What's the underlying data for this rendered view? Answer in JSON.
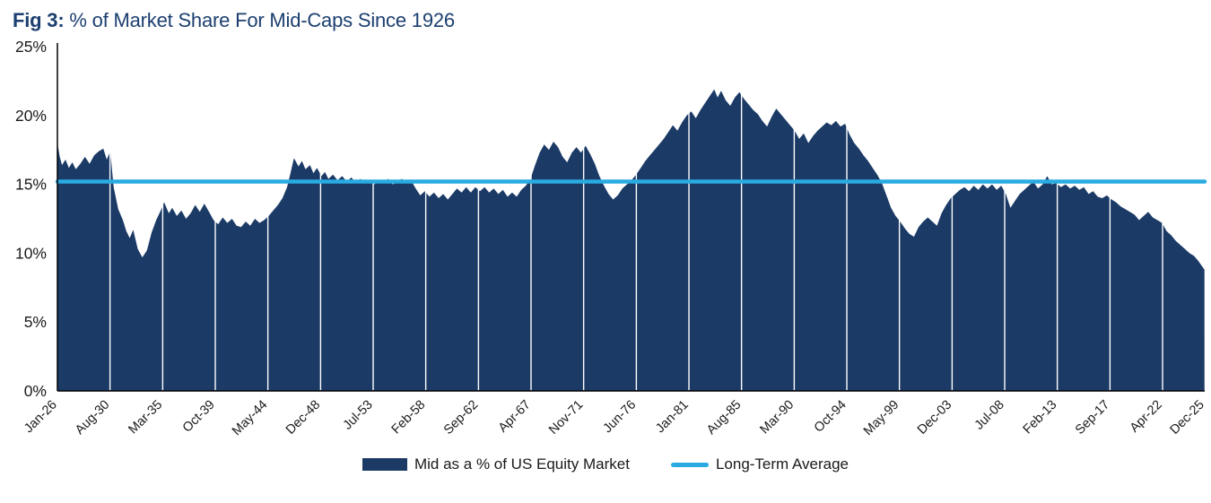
{
  "title": {
    "prefix": "Fig 3:",
    "text": " % of Market Share For Mid-Caps Since 1926"
  },
  "colors": {
    "navy": "#1b3a66",
    "light_blue": "#29abe2",
    "axis": "#000000",
    "tick_text": "#1a1a1a",
    "title": "#1c3f70",
    "gridline": "#ffffff"
  },
  "legend": [
    {
      "swatch": "area",
      "label": "Mid as a % of US Equity Market"
    },
    {
      "swatch": "line",
      "label": "Long-Term Average"
    }
  ],
  "chart_data": {
    "type": "area",
    "title": "Fig 3: % of Market Share For Mid-Caps Since 1926",
    "series_name": "Mid as a % of US Equity Market",
    "average_line": {
      "name": "Long-Term Average",
      "value": 15.2
    },
    "ylim": [
      0,
      25
    ],
    "yticks": [
      "0%",
      "5%",
      "10%",
      "15%",
      "20%",
      "25%"
    ],
    "ytick_values": [
      0,
      5,
      10,
      15,
      20,
      25
    ],
    "xlim": [
      1926.0,
      2025.92
    ],
    "xticks": [
      {
        "label": "Jan-26",
        "x": 1926.0
      },
      {
        "label": "Aug-30",
        "x": 1930.58
      },
      {
        "label": "Mar-35",
        "x": 1935.17
      },
      {
        "label": "Oct-39",
        "x": 1939.75
      },
      {
        "label": "May-44",
        "x": 1944.33
      },
      {
        "label": "Dec-48",
        "x": 1948.92
      },
      {
        "label": "Jul-53",
        "x": 1953.5
      },
      {
        "label": "Feb-58",
        "x": 1958.08
      },
      {
        "label": "Sep-62",
        "x": 1962.67
      },
      {
        "label": "Apr-67",
        "x": 1967.25
      },
      {
        "label": "Nov-71",
        "x": 1971.83
      },
      {
        "label": "Jun-76",
        "x": 1976.42
      },
      {
        "label": "Jan-81",
        "x": 1981.0
      },
      {
        "label": "Aug-85",
        "x": 1985.58
      },
      {
        "label": "Mar-90",
        "x": 1990.17
      },
      {
        "label": "Oct-94",
        "x": 1994.75
      },
      {
        "label": "May-99",
        "x": 1999.33
      },
      {
        "label": "Dec-03",
        "x": 2003.92
      },
      {
        "label": "Jul-08",
        "x": 2008.5
      },
      {
        "label": "Feb-13",
        "x": 2013.08
      },
      {
        "label": "Sep-17",
        "x": 2017.67
      },
      {
        "label": "Apr-22",
        "x": 2022.25
      },
      {
        "label": "Dec-25",
        "x": 2025.92
      }
    ],
    "points": [
      [
        1926,
        18
      ],
      [
        1926.2,
        17
      ],
      [
        1926.4,
        16.4
      ],
      [
        1926.7,
        16.8
      ],
      [
        1927,
        16.2
      ],
      [
        1927.3,
        16.6
      ],
      [
        1927.6,
        16.1
      ],
      [
        1928,
        16.5
      ],
      [
        1928.4,
        17
      ],
      [
        1928.8,
        16.5
      ],
      [
        1929.2,
        17.1
      ],
      [
        1929.6,
        17.4
      ],
      [
        1930,
        17.6
      ],
      [
        1930.3,
        16.8
      ],
      [
        1930.6,
        17.4
      ],
      [
        1930.9,
        14.8
      ],
      [
        1931.3,
        13.2
      ],
      [
        1931.7,
        12.4
      ],
      [
        1932,
        11.6
      ],
      [
        1932.3,
        11.1
      ],
      [
        1932.6,
        11.7
      ],
      [
        1933,
        10.3
      ],
      [
        1933.4,
        9.7
      ],
      [
        1933.8,
        10.2
      ],
      [
        1934.2,
        11.5
      ],
      [
        1934.6,
        12.4
      ],
      [
        1935,
        13.1
      ],
      [
        1935.3,
        13.7
      ],
      [
        1935.7,
        12.9
      ],
      [
        1936,
        13.3
      ],
      [
        1936.4,
        12.7
      ],
      [
        1936.8,
        13.1
      ],
      [
        1937.2,
        12.5
      ],
      [
        1937.6,
        12.9
      ],
      [
        1938,
        13.5
      ],
      [
        1938.4,
        13
      ],
      [
        1938.8,
        13.6
      ],
      [
        1939.2,
        13
      ],
      [
        1939.6,
        12.4
      ],
      [
        1940,
        12.1
      ],
      [
        1940.4,
        12.6
      ],
      [
        1940.8,
        12.2
      ],
      [
        1941.2,
        12.5
      ],
      [
        1941.6,
        12
      ],
      [
        1942,
        11.9
      ],
      [
        1942.4,
        12.3
      ],
      [
        1942.8,
        12
      ],
      [
        1943.2,
        12.5
      ],
      [
        1943.6,
        12.2
      ],
      [
        1944,
        12.4
      ],
      [
        1944.4,
        12.7
      ],
      [
        1944.8,
        13.1
      ],
      [
        1945.2,
        13.5
      ],
      [
        1945.6,
        14
      ],
      [
        1946,
        14.8
      ],
      [
        1946.3,
        15.8
      ],
      [
        1946.6,
        16.9
      ],
      [
        1947,
        16.3
      ],
      [
        1947.3,
        16.7
      ],
      [
        1947.6,
        16.1
      ],
      [
        1948,
        16.4
      ],
      [
        1948.3,
        15.8
      ],
      [
        1948.6,
        16.2
      ],
      [
        1949,
        15.6
      ],
      [
        1949.3,
        15.9
      ],
      [
        1949.6,
        15.4
      ],
      [
        1950,
        15.7
      ],
      [
        1950.4,
        15.3
      ],
      [
        1950.8,
        15.6
      ],
      [
        1951.2,
        15.2
      ],
      [
        1951.6,
        15.5
      ],
      [
        1952,
        15.1
      ],
      [
        1952.4,
        15.4
      ],
      [
        1952.8,
        15.1
      ],
      [
        1953.2,
        15.3
      ],
      [
        1953.6,
        15
      ],
      [
        1954,
        15.3
      ],
      [
        1954.4,
        15.1
      ],
      [
        1954.8,
        15.4
      ],
      [
        1955.2,
        15
      ],
      [
        1955.6,
        15.2
      ],
      [
        1956,
        15.4
      ],
      [
        1956.4,
        15.1
      ],
      [
        1956.8,
        15.3
      ],
      [
        1957.2,
        14.7
      ],
      [
        1957.6,
        14.2
      ],
      [
        1958,
        14.5
      ],
      [
        1958.4,
        14.1
      ],
      [
        1958.8,
        14.4
      ],
      [
        1959.2,
        14
      ],
      [
        1959.6,
        14.3
      ],
      [
        1960,
        13.9
      ],
      [
        1960.4,
        14.3
      ],
      [
        1960.8,
        14.7
      ],
      [
        1961.2,
        14.4
      ],
      [
        1961.6,
        14.8
      ],
      [
        1962,
        14.4
      ],
      [
        1962.4,
        14.8
      ],
      [
        1962.8,
        14.5
      ],
      [
        1963.2,
        14.8
      ],
      [
        1963.6,
        14.4
      ],
      [
        1964,
        14.7
      ],
      [
        1964.4,
        14.3
      ],
      [
        1964.8,
        14.6
      ],
      [
        1965.2,
        14.1
      ],
      [
        1965.6,
        14.4
      ],
      [
        1966,
        14.1
      ],
      [
        1966.4,
        14.6
      ],
      [
        1966.8,
        14.9
      ],
      [
        1967.2,
        15.4
      ],
      [
        1967.6,
        16.4
      ],
      [
        1968,
        17.3
      ],
      [
        1968.4,
        17.9
      ],
      [
        1968.8,
        17.5
      ],
      [
        1969.2,
        18.1
      ],
      [
        1969.6,
        17.7
      ],
      [
        1970,
        17
      ],
      [
        1970.4,
        16.6
      ],
      [
        1970.8,
        17.3
      ],
      [
        1971.2,
        17.7
      ],
      [
        1971.6,
        17.3
      ],
      [
        1972,
        17.8
      ],
      [
        1972.4,
        17.2
      ],
      [
        1972.8,
        16.5
      ],
      [
        1973.2,
        15.6
      ],
      [
        1973.6,
        14.9
      ],
      [
        1974,
        14.3
      ],
      [
        1974.4,
        13.9
      ],
      [
        1974.8,
        14.2
      ],
      [
        1975.2,
        14.7
      ],
      [
        1975.6,
        15
      ],
      [
        1976,
        15.3
      ],
      [
        1976.4,
        15.7
      ],
      [
        1976.8,
        16.2
      ],
      [
        1977.2,
        16.7
      ],
      [
        1977.6,
        17.1
      ],
      [
        1978,
        17.5
      ],
      [
        1978.4,
        17.9
      ],
      [
        1978.8,
        18.3
      ],
      [
        1979.2,
        18.8
      ],
      [
        1979.6,
        19.3
      ],
      [
        1980,
        18.9
      ],
      [
        1980.4,
        19.5
      ],
      [
        1980.8,
        20
      ],
      [
        1981.2,
        20.3
      ],
      [
        1981.6,
        19.8
      ],
      [
        1982,
        20.4
      ],
      [
        1982.4,
        20.9
      ],
      [
        1982.8,
        21.4
      ],
      [
        1983.2,
        21.9
      ],
      [
        1983.5,
        21.3
      ],
      [
        1983.8,
        21.8
      ],
      [
        1984.2,
        21.1
      ],
      [
        1984.6,
        20.7
      ],
      [
        1985,
        21.3
      ],
      [
        1985.4,
        21.7
      ],
      [
        1985.8,
        21.2
      ],
      [
        1986.2,
        20.8
      ],
      [
        1986.6,
        20.4
      ],
      [
        1987,
        20.1
      ],
      [
        1987.4,
        19.6
      ],
      [
        1987.8,
        19.2
      ],
      [
        1988.2,
        19.9
      ],
      [
        1988.6,
        20.5
      ],
      [
        1989,
        20.1
      ],
      [
        1989.4,
        19.7
      ],
      [
        1989.8,
        19.3
      ],
      [
        1990.2,
        18.9
      ],
      [
        1990.6,
        18.3
      ],
      [
        1991,
        18.7
      ],
      [
        1991.4,
        18
      ],
      [
        1991.8,
        18.5
      ],
      [
        1992.2,
        18.9
      ],
      [
        1992.6,
        19.2
      ],
      [
        1993,
        19.5
      ],
      [
        1993.4,
        19.3
      ],
      [
        1993.8,
        19.6
      ],
      [
        1994.2,
        19.2
      ],
      [
        1994.6,
        19.4
      ],
      [
        1995,
        18.6
      ],
      [
        1995.4,
        18
      ],
      [
        1995.8,
        17.6
      ],
      [
        1996.2,
        17.1
      ],
      [
        1996.6,
        16.7
      ],
      [
        1997,
        16.2
      ],
      [
        1997.4,
        15.7
      ],
      [
        1997.8,
        15.1
      ],
      [
        1998.2,
        14.2
      ],
      [
        1998.6,
        13.3
      ],
      [
        1999,
        12.7
      ],
      [
        1999.4,
        12.3
      ],
      [
        1999.8,
        11.8
      ],
      [
        2000.2,
        11.4
      ],
      [
        2000.6,
        11.2
      ],
      [
        2001,
        11.9
      ],
      [
        2001.4,
        12.3
      ],
      [
        2001.8,
        12.6
      ],
      [
        2002.2,
        12.3
      ],
      [
        2002.6,
        12
      ],
      [
        2003,
        12.9
      ],
      [
        2003.4,
        13.5
      ],
      [
        2003.8,
        14
      ],
      [
        2004.2,
        14.3
      ],
      [
        2004.6,
        14.6
      ],
      [
        2005,
        14.8
      ],
      [
        2005.4,
        14.5
      ],
      [
        2005.8,
        14.9
      ],
      [
        2006.2,
        14.6
      ],
      [
        2006.6,
        15
      ],
      [
        2007,
        14.7
      ],
      [
        2007.4,
        15
      ],
      [
        2007.8,
        14.6
      ],
      [
        2008.2,
        14.9
      ],
      [
        2008.6,
        14.3
      ],
      [
        2009,
        13.3
      ],
      [
        2009.4,
        13.8
      ],
      [
        2009.8,
        14.3
      ],
      [
        2010.2,
        14.6
      ],
      [
        2010.6,
        14.9
      ],
      [
        2011,
        15.2
      ],
      [
        2011.4,
        14.7
      ],
      [
        2011.8,
        15
      ],
      [
        2012.2,
        15.6
      ],
      [
        2012.6,
        15
      ],
      [
        2013,
        15.1
      ],
      [
        2013.4,
        14.8
      ],
      [
        2013.8,
        15
      ],
      [
        2014.2,
        14.7
      ],
      [
        2014.6,
        14.9
      ],
      [
        2015,
        14.6
      ],
      [
        2015.4,
        14.8
      ],
      [
        2015.8,
        14.3
      ],
      [
        2016.2,
        14.5
      ],
      [
        2016.6,
        14.1
      ],
      [
        2017,
        14
      ],
      [
        2017.4,
        14.2
      ],
      [
        2017.8,
        13.9
      ],
      [
        2018.2,
        13.7
      ],
      [
        2018.6,
        13.4
      ],
      [
        2019,
        13.2
      ],
      [
        2019.4,
        13
      ],
      [
        2019.8,
        12.8
      ],
      [
        2020.2,
        12.4
      ],
      [
        2020.6,
        12.7
      ],
      [
        2021,
        13
      ],
      [
        2021.4,
        12.6
      ],
      [
        2021.8,
        12.4
      ],
      [
        2022.2,
        12.2
      ],
      [
        2022.6,
        11.6
      ],
      [
        2023,
        11.3
      ],
      [
        2023.4,
        10.9
      ],
      [
        2023.8,
        10.6
      ],
      [
        2024.2,
        10.3
      ],
      [
        2024.6,
        10
      ],
      [
        2025,
        9.8
      ],
      [
        2025.4,
        9.4
      ],
      [
        2025.9,
        8.8
      ]
    ]
  }
}
